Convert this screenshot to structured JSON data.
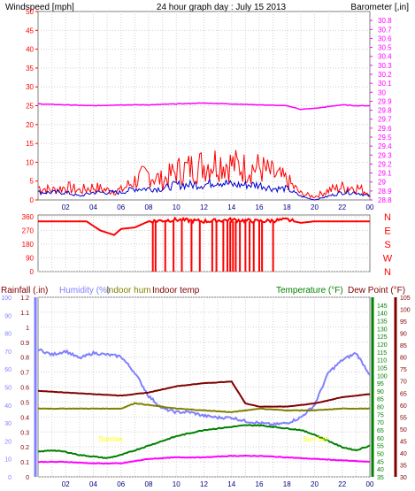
{
  "colors": {
    "wind": "#ff0000",
    "gust": "#ff0000",
    "avgwind": "#0000cc",
    "baro": "#ff00ff",
    "rain": "#ff00ff",
    "humidity": "#8080ff",
    "indoor_hum": "#808000",
    "indoor_temp": "#800000",
    "temperature": "#008000",
    "dewpoint": "#800000",
    "sunrise": "#ffff00"
  },
  "chart_data": [
    {
      "type": "line",
      "title": "24 hour graph day : July 15 2013",
      "ylabel_left": "Windspeed [mph]",
      "ylabel_right": "Barometer [,in]",
      "x_ticks": [
        "02",
        "04",
        "06",
        "08",
        "10",
        "12",
        "14",
        "16",
        "18",
        "20",
        "22",
        "00"
      ],
      "ylim_left": [
        0,
        50
      ],
      "ticks_left": [
        "0",
        "5",
        "10",
        "15",
        "20",
        "25",
        "30",
        "35",
        "40",
        "45",
        "50"
      ],
      "ylim_right": [
        28.8,
        30.9
      ],
      "ticks_right": [
        "28.8",
        "28.9",
        "29",
        "29.1",
        "29.2",
        "29.3",
        "29.4",
        "29.5",
        "29.6",
        "29.7",
        "29.8",
        "29.9",
        "30",
        "30.1",
        "30.2",
        "30.3",
        "30.4",
        "30.5",
        "30.6",
        "30.7",
        "30.8"
      ],
      "series": [
        {
          "key": "gust",
          "hours": [
            0,
            1,
            2,
            3,
            4,
            5,
            6,
            7,
            8,
            9,
            10,
            11,
            12,
            13,
            14,
            15,
            16,
            17,
            18,
            19,
            20,
            21,
            22,
            23,
            24
          ],
          "values": [
            4,
            3,
            4,
            3,
            4,
            3,
            3,
            6,
            8,
            6,
            9,
            10,
            11,
            12,
            11,
            10,
            10,
            8,
            6,
            2,
            1,
            3,
            4,
            4,
            2
          ]
        },
        {
          "key": "avgwind",
          "hours": [
            0,
            1,
            2,
            3,
            4,
            5,
            6,
            7,
            8,
            9,
            10,
            11,
            12,
            13,
            14,
            15,
            16,
            17,
            18,
            19,
            20,
            21,
            22,
            23,
            24
          ],
          "values": [
            2,
            2,
            2,
            1,
            2,
            2,
            2,
            3,
            3,
            3,
            4,
            4,
            4,
            5,
            4,
            4,
            4,
            3,
            3,
            1,
            0,
            1,
            2,
            2,
            1
          ]
        },
        {
          "key": "baro",
          "hours": [
            0,
            2,
            4,
            6,
            8,
            10,
            12,
            14,
            16,
            18,
            19,
            20,
            22,
            23,
            24
          ],
          "values": [
            29.87,
            29.86,
            29.85,
            29.86,
            29.86,
            29.87,
            29.88,
            29.87,
            29.86,
            29.85,
            29.81,
            29.82,
            29.86,
            29.85,
            29.85
          ]
        }
      ]
    },
    {
      "type": "line",
      "ylabel_left": "Wind direction",
      "ticks_left": [
        "0",
        "90",
        "180",
        "270",
        "360"
      ],
      "ylim_left": [
        0,
        360
      ],
      "compass_labels": [
        "N",
        "W",
        "S",
        "E",
        "N"
      ],
      "x_ticks": [
        "02",
        "04",
        "06",
        "08",
        "10",
        "12",
        "14",
        "16",
        "18",
        "20",
        "22",
        "00"
      ],
      "series": [
        {
          "key": "direction",
          "hours": [
            0,
            3.5,
            4.5,
            5.5,
            6,
            7,
            8,
            10,
            12,
            14,
            16,
            18,
            19,
            20,
            22,
            24
          ],
          "values": [
            330,
            330,
            270,
            240,
            280,
            290,
            330,
            340,
            330,
            340,
            330,
            340,
            320,
            330,
            330,
            330
          ]
        }
      ]
    },
    {
      "type": "line",
      "labels": {
        "rainfall": "Rainfall (.in)",
        "humidity": "Humidity (%)",
        "indoor_hum": "Indoor hum",
        "indoor_temp": "Indoor temp",
        "temperature": "Temperature (°F)",
        "dewpoint": "Dew Point (°F)",
        "sunrise": "Sunrise",
        "sunset": "Sun Set"
      },
      "x_ticks": [
        "02",
        "04",
        "06",
        "08",
        "10",
        "12",
        "14",
        "16",
        "18",
        "20",
        "22",
        "00"
      ],
      "ylim_rain": [
        0,
        1.2
      ],
      "ticks_rain": [
        "0",
        "0.1",
        "0.2",
        "0.3",
        "0.4",
        "0.5",
        "0.6",
        "0.7",
        "0.8",
        "0.9",
        "1",
        "1.1",
        "1.2"
      ],
      "ylim_hum": [
        0,
        100
      ],
      "ticks_hum": [
        "0",
        "10",
        "20",
        "30",
        "40",
        "50",
        "60",
        "70",
        "80",
        "90",
        "100"
      ],
      "ylim_temp": [
        35,
        150
      ],
      "ticks_temp": [
        "35",
        "40",
        "45",
        "50",
        "55",
        "60",
        "65",
        "70",
        "75",
        "80",
        "85",
        "90",
        "95",
        "100",
        "105",
        "110",
        "115",
        "120",
        "125",
        "130",
        "135",
        "140",
        "145"
      ],
      "ylim_dew": [
        30,
        105
      ],
      "ticks_dew": [
        "30",
        "35",
        "40",
        "45",
        "50",
        "55",
        "60",
        "65",
        "70",
        "75",
        "80",
        "85",
        "90",
        "95",
        "100",
        "105"
      ],
      "sunrise_hour": 5.4,
      "sunset_hour": 20.3,
      "series": [
        {
          "key": "humidity",
          "scale": "hum",
          "hours": [
            0,
            1,
            2,
            3,
            4,
            5,
            6,
            7,
            8,
            9,
            10,
            11,
            12,
            13,
            14,
            15,
            16,
            17,
            18,
            19,
            20,
            21,
            22,
            23,
            24
          ],
          "values": [
            71,
            68,
            70,
            66,
            69,
            68,
            67,
            58,
            45,
            38,
            36,
            36,
            34,
            33,
            33,
            31,
            30,
            29,
            30,
            33,
            40,
            58,
            65,
            69,
            57
          ]
        },
        {
          "key": "indoor_temp",
          "scale": "temp",
          "hours": [
            0,
            2,
            4,
            6,
            8,
            10,
            12,
            14,
            15,
            16,
            18,
            20,
            22,
            24
          ],
          "values": [
            90,
            89,
            88,
            87,
            89,
            93,
            95,
            96,
            82,
            80,
            80,
            82,
            86,
            88
          ]
        },
        {
          "key": "indoor_hum",
          "scale": "hum",
          "hours": [
            0,
            4,
            6,
            7,
            8,
            10,
            12,
            14,
            15,
            16,
            18,
            20,
            22,
            24
          ],
          "values": [
            38,
            38,
            38,
            41,
            40,
            38,
            37,
            36,
            37,
            38,
            37,
            37,
            38,
            38
          ]
        },
        {
          "key": "temperature",
          "scale": "temp",
          "hours": [
            0,
            1,
            2,
            3,
            4,
            5,
            6,
            7,
            8,
            9,
            10,
            11,
            12,
            13,
            14,
            15,
            16,
            17,
            18,
            19,
            20,
            21,
            22,
            23,
            24
          ],
          "values": [
            51,
            52,
            51,
            49,
            48,
            47,
            49,
            52,
            55,
            58,
            61,
            63,
            65,
            66,
            67,
            68,
            68,
            67,
            66,
            65,
            62,
            58,
            54,
            52,
            55
          ]
        },
        {
          "key": "rain",
          "scale": "rain",
          "hours": [
            0,
            2,
            4,
            6,
            8,
            10,
            12,
            14,
            16,
            18,
            20,
            22,
            24
          ],
          "values": [
            0.1,
            0.1,
            0.09,
            0.09,
            0.12,
            0.13,
            0.13,
            0.14,
            0.14,
            0.13,
            0.12,
            0.11,
            0.1
          ]
        }
      ]
    }
  ]
}
